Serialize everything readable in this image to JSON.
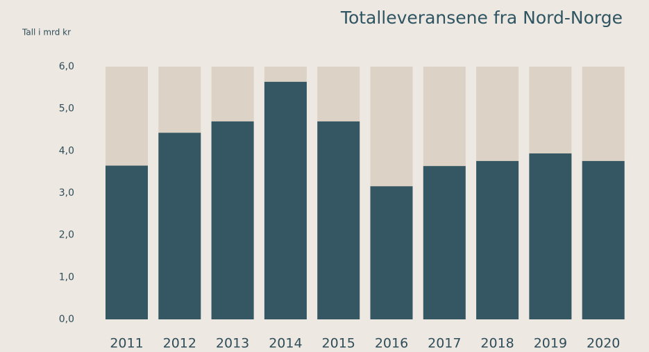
{
  "chart_data": {
    "type": "bar",
    "title": "Totalleveransene fra Nord-Norge",
    "y_axis_label": "Tall i mrd kr",
    "categories": [
      "2011",
      "2012",
      "2013",
      "2014",
      "2015",
      "2016",
      "2017",
      "2018",
      "2019",
      "2020"
    ],
    "values": [
      3.65,
      4.43,
      4.7,
      5.64,
      4.7,
      3.16,
      3.64,
      3.76,
      3.94,
      3.76
    ],
    "color": "#355663",
    "track_color": "#dcd3c6",
    "ylim": [
      0,
      6
    ],
    "yticks": [
      {
        "value": 0,
        "label": "0,0"
      },
      {
        "value": 1,
        "label": "1,0"
      },
      {
        "value": 2,
        "label": "2,0"
      },
      {
        "value": 3,
        "label": "3,0"
      },
      {
        "value": 4,
        "label": "4,0"
      },
      {
        "value": 5,
        "label": "5,0"
      },
      {
        "value": 6,
        "label": "6,0"
      }
    ],
    "grid": false
  }
}
